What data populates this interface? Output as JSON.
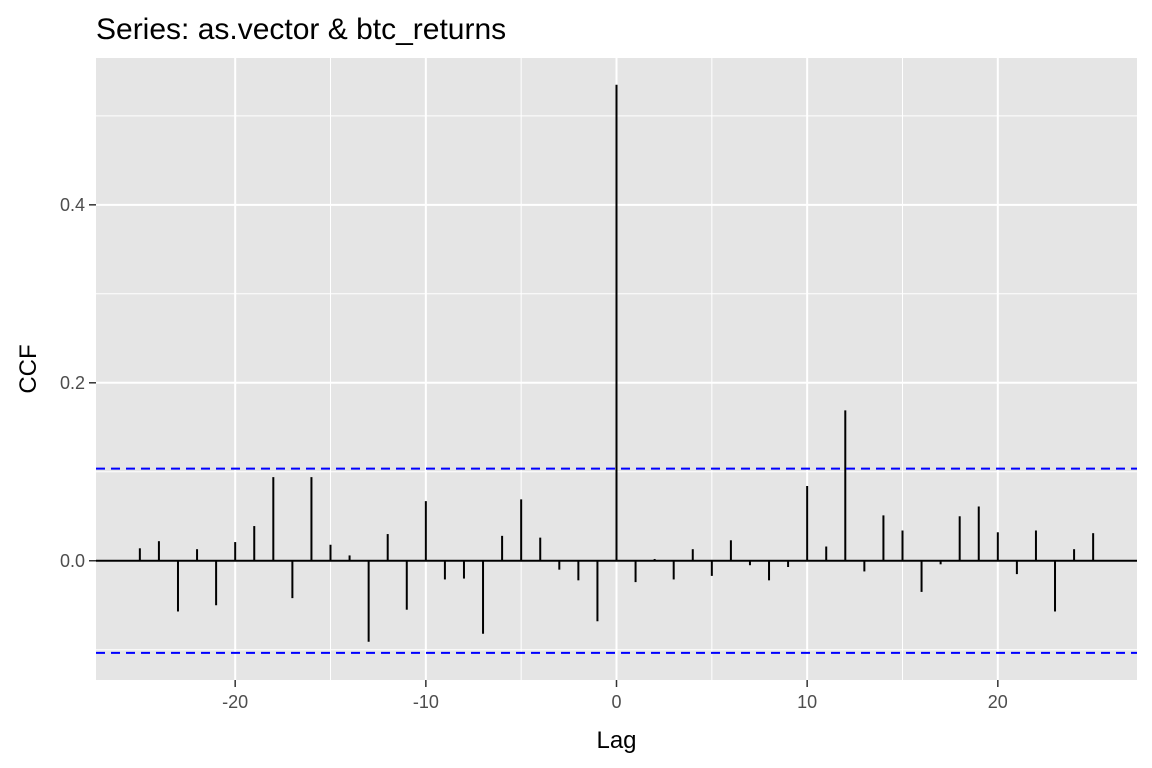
{
  "chart_data": {
    "type": "bar",
    "title": "Series: as.vector & btc_returns",
    "xlabel": "Lag",
    "ylabel": "CCF",
    "xlim": [
      -27.3,
      27.3
    ],
    "ylim": [
      -0.134,
      0.565
    ],
    "x_ticks": [
      -20,
      -10,
      0,
      10,
      20
    ],
    "x_tick_labels": [
      "-20",
      "-10",
      "0",
      "10",
      "20"
    ],
    "y_ticks": [
      0.0,
      0.2,
      0.4
    ],
    "y_tick_labels": [
      "0.0",
      "0.2",
      "0.4"
    ],
    "lags": [
      -25,
      -24,
      -23,
      -22,
      -21,
      -20,
      -19,
      -18,
      -17,
      -16,
      -15,
      -14,
      -13,
      -12,
      -11,
      -10,
      -9,
      -8,
      -7,
      -6,
      -5,
      -4,
      -3,
      -2,
      -1,
      0,
      1,
      2,
      3,
      4,
      5,
      6,
      7,
      8,
      9,
      10,
      11,
      12,
      13,
      14,
      15,
      16,
      17,
      18,
      19,
      20,
      21,
      22,
      23,
      24,
      25
    ],
    "values": [
      0.014,
      0.022,
      -0.057,
      0.013,
      -0.05,
      0.021,
      0.039,
      0.094,
      -0.042,
      0.094,
      0.018,
      0.006,
      -0.091,
      0.03,
      -0.055,
      0.067,
      -0.021,
      -0.02,
      -0.082,
      0.028,
      0.069,
      0.026,
      -0.01,
      -0.022,
      -0.068,
      0.535,
      -0.024,
      0.002,
      -0.021,
      0.013,
      -0.017,
      0.023,
      -0.005,
      -0.022,
      -0.007,
      0.084,
      0.016,
      0.169,
      -0.012,
      0.051,
      0.034,
      -0.035,
      -0.004,
      0.05,
      0.061,
      0.032,
      -0.015,
      0.034,
      -0.057,
      0.013,
      0.031
    ],
    "confidence_bound": 0.1035,
    "grid": true,
    "colors": {
      "panel": "#e5e5e5",
      "grid": "#ffffff",
      "bars": "#000000",
      "bounds": "#0000ff"
    }
  }
}
